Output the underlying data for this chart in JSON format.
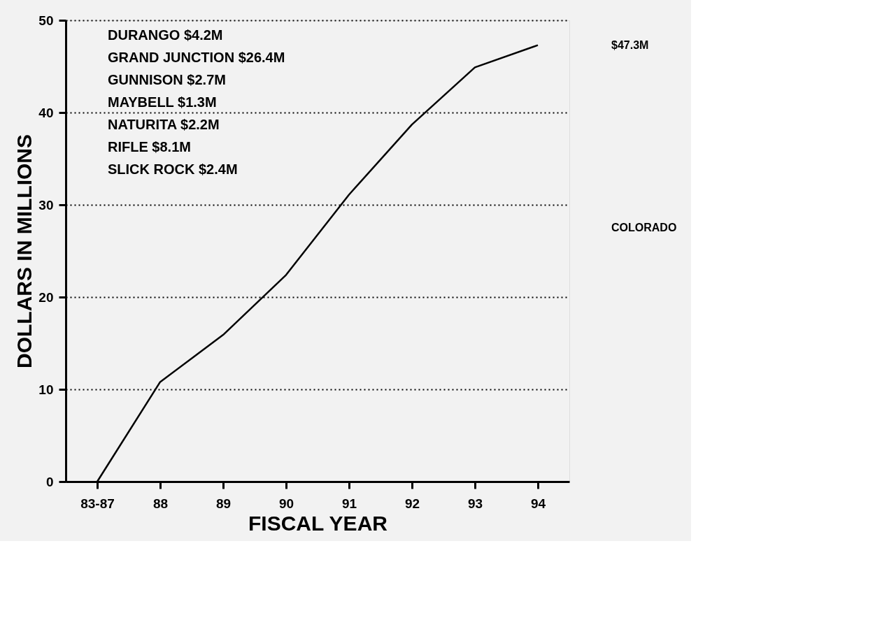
{
  "chart_data": {
    "type": "line",
    "xlabel": "FISCAL YEAR",
    "ylabel": "DOLLARS IN MILLIONS",
    "categories": [
      "83-87",
      "88",
      "89",
      "90",
      "91",
      "92",
      "93",
      "94"
    ],
    "series": [
      {
        "color": "#000000",
        "values": [
          0,
          10.8,
          15.9,
          22.4,
          31.1,
          38.7,
          44.9,
          47.3
        ]
      }
    ],
    "ylim": [
      0,
      50
    ],
    "yticks": [
      0,
      10,
      20,
      30,
      40,
      50
    ],
    "grid": "y",
    "marker": "none",
    "line_style": "solid",
    "annotations": [
      "DURANGO $4.2M",
      "GRAND JUNCTION $26.4M",
      "GUNNISON $2.7M",
      "MAYBELL $1.3M",
      "NATURITA $2.2M",
      "RIFLE $8.1M",
      "SLICK ROCK $2.4M",
      "$47.3M",
      "COLORADO"
    ]
  }
}
